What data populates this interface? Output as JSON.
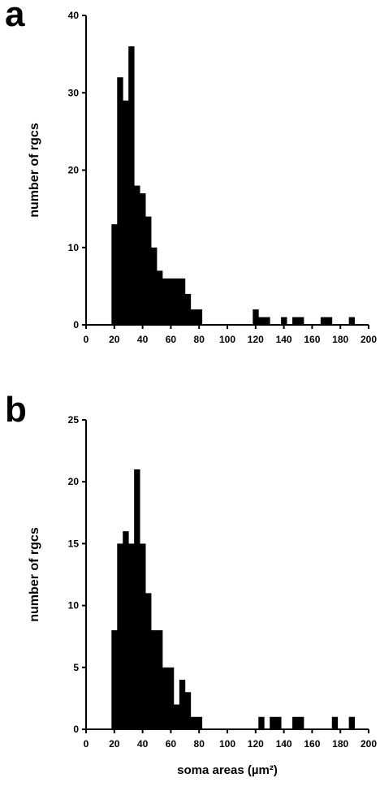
{
  "chart_data": [
    {
      "type": "bar",
      "panel_label": "a",
      "ylabel": "number of rgcs",
      "xlabel": "",
      "xlim": [
        0,
        200
      ],
      "ylim": [
        0,
        40
      ],
      "xticks": [
        0,
        20,
        40,
        60,
        80,
        100,
        120,
        140,
        160,
        180,
        200
      ],
      "yticks": [
        0,
        10,
        20,
        30,
        40
      ],
      "bin_width": 4,
      "bin_starts": [
        18,
        22,
        26,
        30,
        34,
        38,
        42,
        46,
        50,
        54,
        58,
        62,
        66,
        70,
        74,
        78,
        118,
        122,
        126,
        138,
        146,
        150,
        166,
        170,
        186
      ],
      "values": [
        13,
        32,
        29,
        36,
        18,
        17,
        14,
        10,
        7,
        6,
        6,
        6,
        6,
        4,
        2,
        2,
        2,
        1,
        1,
        1,
        1,
        1,
        1,
        1,
        1
      ],
      "bar_color": "#000000"
    },
    {
      "type": "bar",
      "panel_label": "b",
      "ylabel": "number of rgcs",
      "xlabel": "soma areas (µm²)",
      "xlim": [
        0,
        200
      ],
      "ylim": [
        0,
        25
      ],
      "xticks": [
        0,
        20,
        40,
        60,
        80,
        100,
        120,
        140,
        160,
        180,
        200
      ],
      "yticks": [
        0,
        5,
        10,
        15,
        20,
        25
      ],
      "bin_width": 4,
      "bin_starts": [
        18,
        22,
        26,
        30,
        34,
        38,
        42,
        46,
        50,
        54,
        58,
        62,
        66,
        70,
        74,
        78,
        122,
        130,
        134,
        146,
        150,
        174,
        186
      ],
      "values": [
        8,
        15,
        16,
        15,
        21,
        15,
        11,
        8,
        8,
        5,
        5,
        2,
        4,
        3,
        1,
        1,
        1,
        1,
        1,
        1,
        1,
        1,
        1
      ],
      "bar_color": "#000000"
    }
  ]
}
